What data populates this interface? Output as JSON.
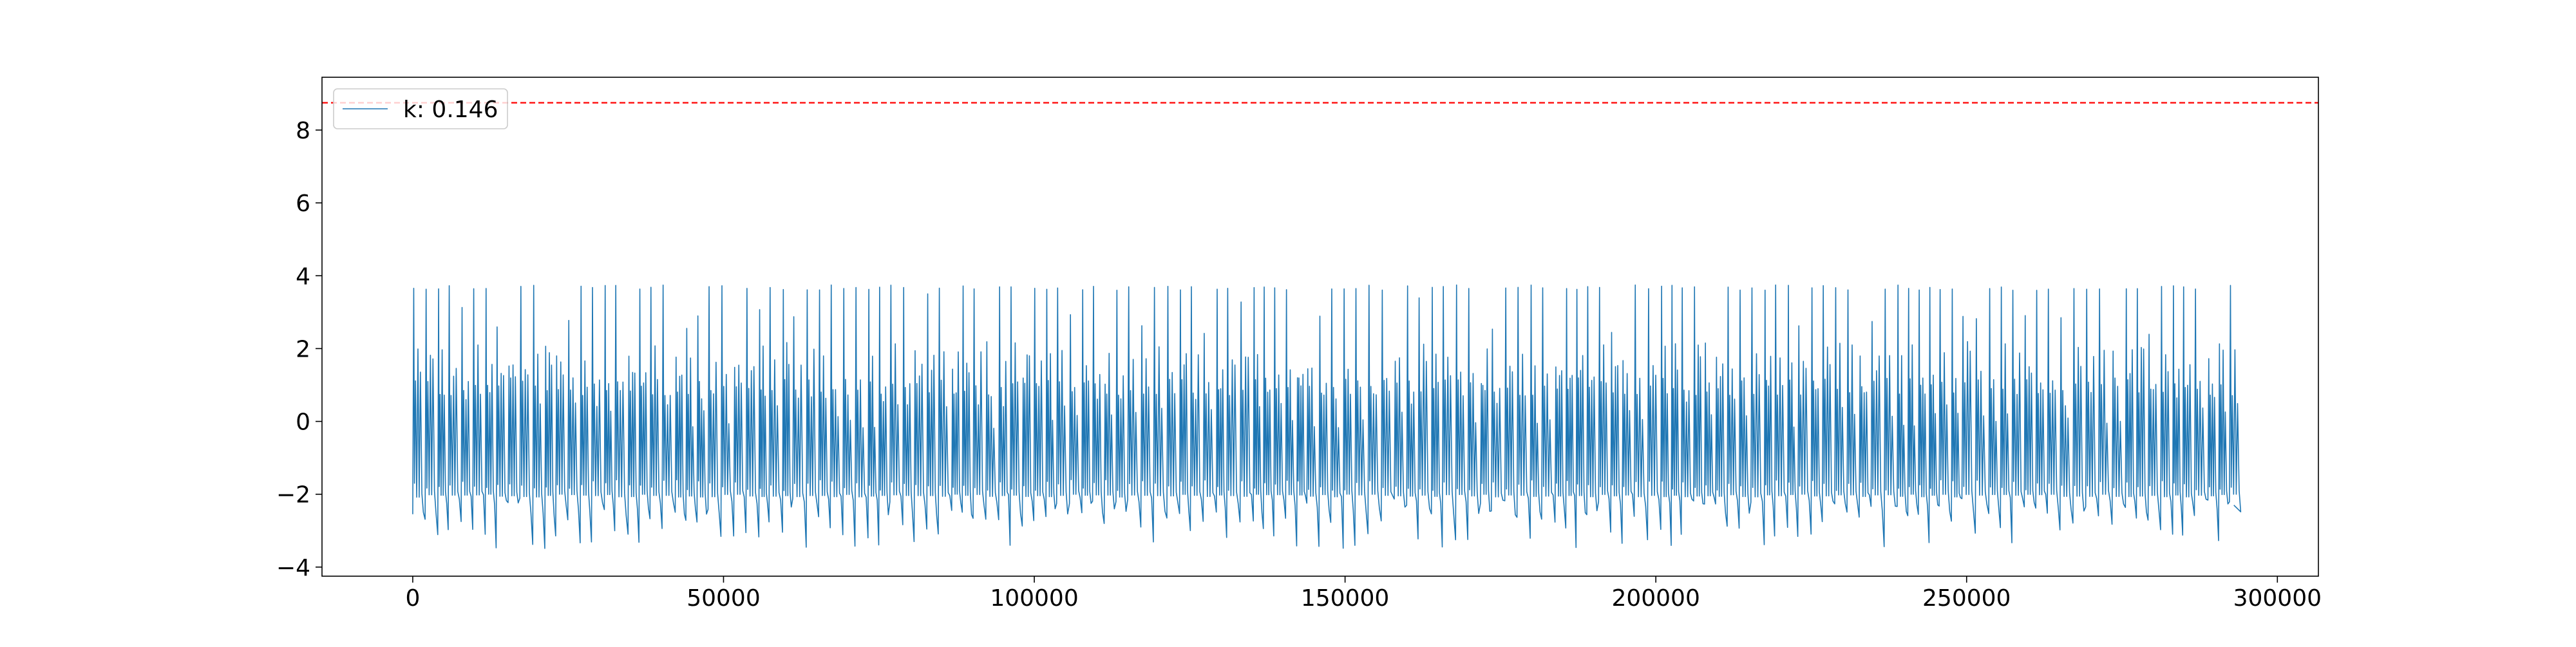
{
  "chart_data": {
    "type": "line",
    "title": "",
    "xlabel": "",
    "ylabel": "",
    "xlim": [
      -14600,
      306600
    ],
    "ylim": [
      -4.25,
      9.45
    ],
    "x_ticks": [
      0,
      50000,
      100000,
      150000,
      200000,
      250000,
      300000
    ],
    "x_tick_labels": [
      "0",
      "50000",
      "100000",
      "150000",
      "200000",
      "250000",
      "300000"
    ],
    "y_ticks": [
      -4,
      -2,
      0,
      2,
      4,
      6,
      8
    ],
    "y_tick_labels": [
      "−4",
      "−2",
      "0",
      "2",
      "4",
      "6",
      "8"
    ],
    "grid": false,
    "legend": {
      "placement": "upper-left",
      "entries": [
        {
          "label": "k: 0.146",
          "color": "#1f77b4",
          "style": "solid"
        }
      ]
    },
    "series": [
      {
        "name": "k: 0.146",
        "color": "#1f77b4",
        "x_start": 0,
        "x_end": 293000,
        "cycle_length": 1900,
        "typical_max": 3.75,
        "typical_min": -2.0,
        "trough_min_range": [
          -3.5,
          -2.1
        ],
        "plateau_level": 1.2
      }
    ],
    "hlines": [
      {
        "y": 8.75,
        "color": "#ff0000",
        "style": "dashed"
      }
    ]
  }
}
